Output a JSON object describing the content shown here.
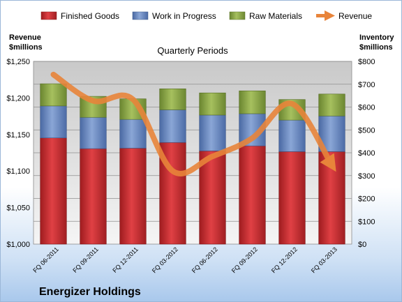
{
  "chart_data": {
    "type": "bar",
    "stacked": true,
    "subtitle": "Quarterly Periods",
    "company": "Energizer Holdings",
    "ylabel_left": [
      "Revenue",
      "$millions"
    ],
    "ylabel_right": [
      "Inventory",
      "$millions"
    ],
    "categories": [
      "FQ 06-2011",
      "FQ 09-2011",
      "FQ 12-2011",
      "FQ 03-2012",
      "FQ 06-2012",
      "FQ 09-2012",
      "FQ 12-2012",
      "FQ 03-2013"
    ],
    "left_axis": {
      "min": 1000,
      "max": 1250,
      "step": 50,
      "tick_labels": [
        "$1,000",
        "$1,050",
        "$1,100",
        "$1,150",
        "$1,200",
        "$1,250"
      ]
    },
    "right_axis": {
      "min": 0,
      "max": 800,
      "step": 100,
      "tick_labels": [
        "$0",
        "$100",
        "$200",
        "$300",
        "$400",
        "$500",
        "$600",
        "$700",
        "$800"
      ]
    },
    "series": [
      {
        "name": "Finished Goods",
        "axis": "right",
        "color": "#c0282d",
        "values": [
          465,
          418,
          420,
          445,
          408,
          430,
          405,
          405
        ]
      },
      {
        "name": "Work in Progress",
        "axis": "right",
        "color": "#5f80b8",
        "values": [
          140,
          137,
          126,
          143,
          157,
          141,
          138,
          156
        ]
      },
      {
        "name": "Raw Materials",
        "axis": "right",
        "color": "#7e9a3c",
        "values": [
          97,
          92,
          90,
          92,
          97,
          100,
          90,
          96
        ]
      },
      {
        "name": "Revenue",
        "axis": "left",
        "type": "line",
        "color": "#e8843a",
        "values": [
          1232,
          1196,
          1198,
          1100,
          1120,
          1145,
          1192,
          1108
        ]
      }
    ],
    "grid": true,
    "legend": "top"
  }
}
